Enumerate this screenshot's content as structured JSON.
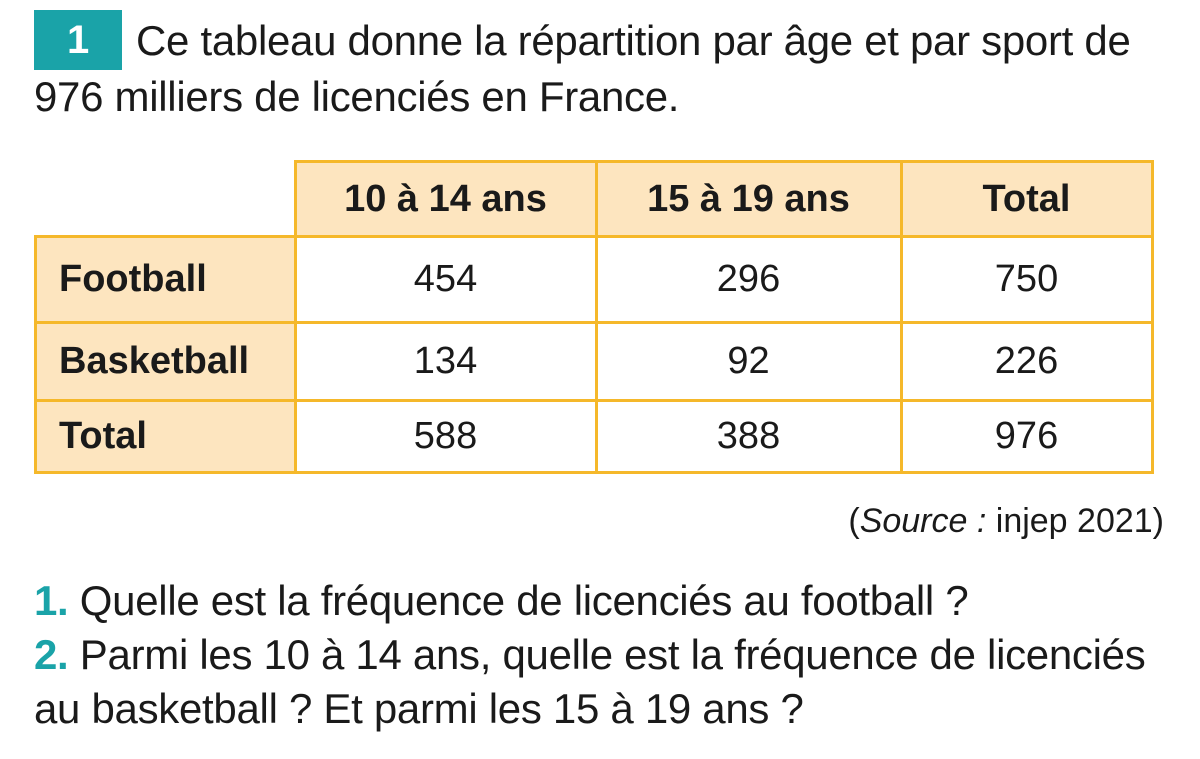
{
  "exercise": {
    "number": "1",
    "intro": "Ce tableau donne la répartition par âge et par sport de 976 milliers de licenciés en France."
  },
  "table": {
    "columns": [
      "10 à 14 ans",
      "15 à 19 ans",
      "Total"
    ],
    "rows": [
      {
        "label": "Football",
        "values": [
          "454",
          "296",
          "750"
        ]
      },
      {
        "label": "Basketball",
        "values": [
          "134",
          "92",
          "226"
        ]
      },
      {
        "label": "Total",
        "values": [
          "588",
          "388",
          "976"
        ]
      }
    ]
  },
  "source": {
    "open": "(",
    "label": "Source :",
    "text": " injep 2021)"
  },
  "questions": [
    {
      "number": "1.",
      "text": " Quelle est la fréquence de licenciés au football ?"
    },
    {
      "number": "2.",
      "text": " Parmi les 10 à 14 ans, quelle est la fréquence de licenciés au basketball ? Et parmi les 15 à 19 ans ?"
    }
  ],
  "colors": {
    "accent": "#1aa3a8",
    "table_border": "#f5b82a",
    "table_header_bg": "#fde5bf"
  }
}
